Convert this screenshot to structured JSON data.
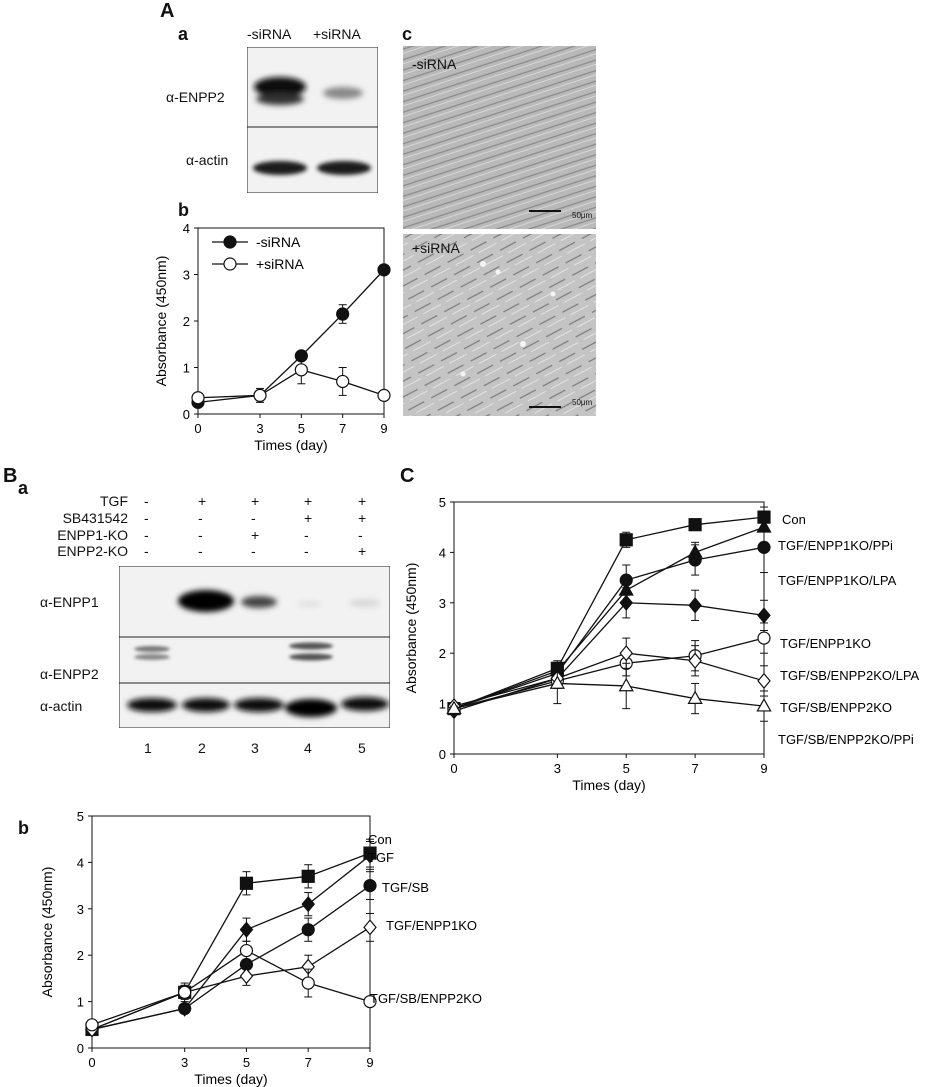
{
  "panels": {
    "A": "A",
    "B": "B",
    "C": "C",
    "A_a": "a",
    "A_b": "b",
    "A_c": "c",
    "B_a": "a",
    "B_b": "b"
  },
  "blot_A": {
    "lanes": [
      "-siRNA",
      "+siRNA"
    ],
    "rows": [
      "α-ENPP2",
      "α-actin"
    ]
  },
  "micro_A": {
    "top_label": "-siRNA",
    "bottom_label": "+siRNA",
    "scalebar": "50μm"
  },
  "blot_B": {
    "conditions": [
      {
        "name": "TGF",
        "signs": [
          "-",
          "+",
          "+",
          "+",
          "+"
        ]
      },
      {
        "name": "SB431542",
        "signs": [
          "-",
          "-",
          "-",
          "+",
          "+"
        ]
      },
      {
        "name": "ENPP1-KO",
        "signs": [
          "-",
          "-",
          "+",
          "-",
          "-"
        ]
      },
      {
        "name": "ENPP2-KO",
        "signs": [
          "-",
          "-",
          "-",
          "-",
          "+"
        ]
      }
    ],
    "rows": [
      "α-ENPP1",
      "α-ENPP2",
      "α-actin"
    ],
    "lane_numbers": [
      "1",
      "2",
      "3",
      "4",
      "5"
    ]
  },
  "chart_data": [
    {
      "id": "Ab",
      "type": "line",
      "title": "",
      "xlabel": "Times (day)",
      "ylabel": "Absorbance (450nm)",
      "x": [
        0,
        3,
        5,
        7,
        9
      ],
      "xlim": [
        0,
        9
      ],
      "ylim": [
        0,
        4
      ],
      "yticks": [
        0,
        1,
        2,
        3,
        4
      ],
      "legend_position": "top-left",
      "series": [
        {
          "name": "-siRNA",
          "marker": "filled-circle",
          "values": [
            0.25,
            0.4,
            1.25,
            2.15,
            3.1
          ],
          "errors": [
            0.05,
            0.05,
            0.05,
            0.2,
            0.05
          ]
        },
        {
          "name": "+siRNA",
          "marker": "open-circle",
          "values": [
            0.35,
            0.4,
            0.95,
            0.7,
            0.4
          ],
          "errors": [
            0.05,
            0.15,
            0.3,
            0.3,
            0.05
          ]
        }
      ]
    },
    {
      "id": "Bb",
      "type": "line",
      "title": "",
      "xlabel": "Times (day)",
      "ylabel": "Absorbance (450nm)",
      "x": [
        0,
        3,
        5,
        7,
        9
      ],
      "xlim": [
        0,
        9
      ],
      "ylim": [
        0,
        5
      ],
      "yticks": [
        0,
        1,
        2,
        3,
        4,
        5
      ],
      "legend_position": "right",
      "series": [
        {
          "name": "Con",
          "marker": "filled-square",
          "values": [
            0.4,
            1.2,
            3.55,
            3.7,
            4.2
          ],
          "errors": [
            0.05,
            0.15,
            0.25,
            0.25,
            0.3
          ]
        },
        {
          "name": "TGF",
          "marker": "filled-diamond",
          "values": [
            0.4,
            0.85,
            2.55,
            3.1,
            4.15
          ],
          "errors": [
            0.05,
            0.1,
            0.25,
            0.25,
            0.3
          ]
        },
        {
          "name": "TGF/SB",
          "marker": "filled-circle",
          "values": [
            0.4,
            0.85,
            1.8,
            2.55,
            3.5
          ],
          "errors": [
            0.05,
            0.1,
            0.25,
            0.25,
            0.3
          ]
        },
        {
          "name": "TGF/ENPP1KO",
          "marker": "open-diamond",
          "values": [
            0.4,
            1.2,
            1.55,
            1.75,
            2.6
          ],
          "errors": [
            0.05,
            0.15,
            0.2,
            0.25,
            0.3
          ]
        },
        {
          "name": "TGF/SB/ENPP2KO",
          "marker": "open-circle",
          "values": [
            0.5,
            1.2,
            2.1,
            1.4,
            1.0
          ],
          "errors": [
            0.05,
            0.2,
            0.2,
            0.3,
            0.05
          ]
        }
      ]
    },
    {
      "id": "C",
      "type": "line",
      "title": "",
      "xlabel": "Times (day)",
      "ylabel": "Absorbance (450nm)",
      "x": [
        0,
        3,
        5,
        7,
        9
      ],
      "xlim": [
        0,
        9
      ],
      "ylim": [
        0,
        5
      ],
      "yticks": [
        0,
        1,
        2,
        3,
        4,
        5
      ],
      "legend_position": "right",
      "series": [
        {
          "name": "Con",
          "marker": "filled-square",
          "values": [
            0.9,
            1.7,
            4.25,
            4.55,
            4.7
          ],
          "errors": [
            0.05,
            0.15,
            0.15,
            0.1,
            0.2
          ]
        },
        {
          "name": "TGF/ENPP1KO/PPi",
          "marker": "filled-triangle",
          "values": [
            0.9,
            1.65,
            3.25,
            4.0,
            4.5
          ],
          "errors": [
            0.05,
            0.15,
            0.25,
            0.2,
            0.3
          ]
        },
        {
          "name": "TGF/ENPP1KO/LPA",
          "marker": "filled-circle",
          "values": [
            0.9,
            1.6,
            3.45,
            3.85,
            4.1
          ],
          "errors": [
            0.05,
            0.15,
            0.3,
            0.3,
            0.5
          ]
        },
        {
          "name": "TGF/ENPP1KO",
          "marker": "filled-diamond",
          "values": [
            0.85,
            1.5,
            3.0,
            2.95,
            2.75
          ],
          "errors": [
            0.05,
            0.15,
            0.3,
            0.3,
            0.3
          ]
        },
        {
          "name": "TGF/SB/ENPP2KO/LPA",
          "marker": "open-circle",
          "values": [
            0.9,
            1.45,
            1.8,
            1.95,
            2.3
          ],
          "errors": [
            0.05,
            0.15,
            0.25,
            0.3,
            0.3
          ]
        },
        {
          "name": "TGF/SB/ENPP2KO",
          "marker": "open-diamond",
          "values": [
            0.95,
            1.5,
            2.0,
            1.85,
            1.45
          ],
          "errors": [
            0.05,
            0.15,
            0.3,
            0.3,
            0.3
          ]
        },
        {
          "name": "TGF/SB/ENPP2KO/PPi",
          "marker": "open-triangle",
          "values": [
            0.9,
            1.4,
            1.35,
            1.1,
            0.95
          ],
          "errors": [
            0.05,
            0.4,
            0.45,
            0.3,
            0.3
          ]
        }
      ]
    }
  ]
}
